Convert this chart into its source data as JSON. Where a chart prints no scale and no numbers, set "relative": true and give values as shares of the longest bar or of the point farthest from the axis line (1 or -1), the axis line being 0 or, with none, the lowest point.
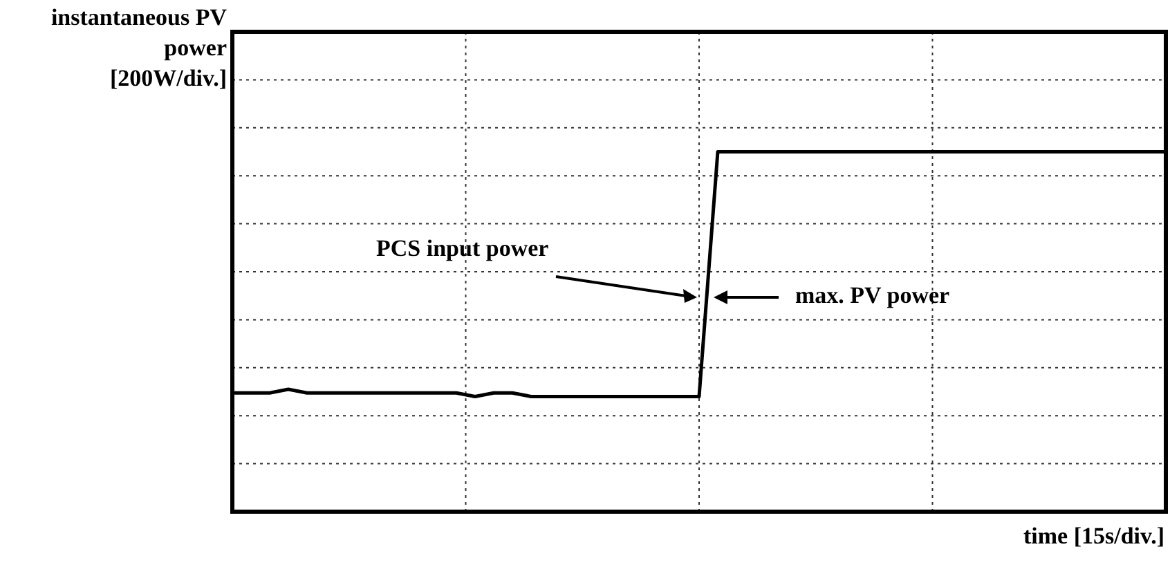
{
  "chart_data": {
    "type": "line",
    "relative": true,
    "xlabel": "time [15s/div.]",
    "ylabel": "instantaneous PV power [200W/div.]",
    "categories": [
      null,
      null,
      null,
      null,
      null,
      null,
      null,
      null,
      null,
      null,
      null,
      null,
      null,
      null,
      null,
      null,
      null,
      null,
      null,
      null,
      null,
      null,
      null,
      null,
      null,
      null,
      null,
      null,
      null,
      null,
      null,
      null,
      null,
      null,
      null,
      null,
      null,
      null,
      null,
      null,
      null,
      null,
      null,
      null,
      null,
      null,
      null,
      null,
      null,
      null,
      null
    ],
    "series": [
      {
        "color": "#000000",
        "values": [
          0.33,
          0.33,
          0.33,
          0.34,
          0.33,
          0.33,
          0.33,
          0.33,
          0.33,
          0.33,
          0.33,
          0.33,
          0.33,
          0.32,
          0.33,
          0.33,
          0.32,
          0.32,
          0.32,
          0.32,
          0.32,
          0.32,
          0.32,
          0.32,
          0.32,
          0.32,
          1,
          1,
          1,
          1,
          1,
          1,
          1,
          1,
          1,
          1,
          1,
          1,
          1,
          1,
          1,
          1,
          1,
          1,
          1,
          1,
          1,
          1,
          1,
          1,
          1
        ]
      }
    ],
    "grid": true,
    "marker": "none",
    "line_style": "solid",
    "annotations": [
      "PCS input power",
      "max. PV power"
    ]
  }
}
